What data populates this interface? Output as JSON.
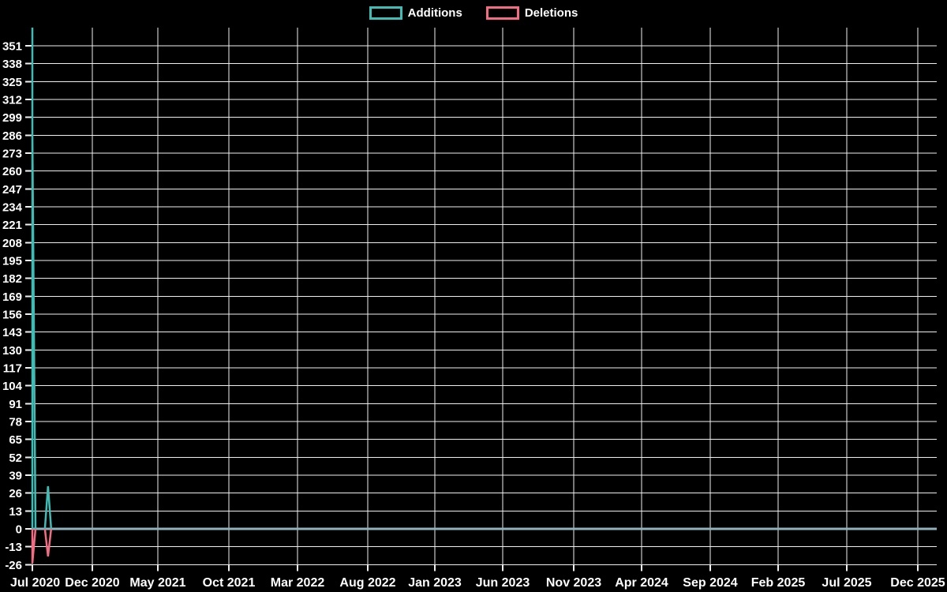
{
  "chart": {
    "background_color": "#000000",
    "text_color": "#ffffff",
    "grid_color": "#efefef"
  },
  "legend": {
    "position": "top-center",
    "items": [
      {
        "label": "Additions",
        "color": "#3dbdb6"
      },
      {
        "label": "Deletions",
        "color": "#f26d83"
      }
    ]
  },
  "chart_data": {
    "type": "line",
    "title": "",
    "xlabel": "",
    "ylabel": "",
    "x_axis": {
      "unit": "week",
      "tick_labels": [
        "Jul 2020",
        "Dec 2020",
        "May 2021",
        "Oct 2021",
        "Mar 2022",
        "Aug 2022",
        "Jan 2023",
        "Jun 2023",
        "Nov 2023",
        "Apr 2024",
        "Sep 2024",
        "Feb 2025",
        "Jul 2025",
        "Dec 2025"
      ]
    },
    "y_axis": {
      "tick_min": -26,
      "tick_max": 351,
      "tick_step": 13,
      "tick_labels": [
        351,
        338,
        325,
        312,
        299,
        286,
        273,
        260,
        247,
        234,
        221,
        208,
        195,
        182,
        169,
        156,
        143,
        130,
        117,
        104,
        91,
        78,
        65,
        52,
        39,
        26,
        13,
        0,
        "-13",
        "-26"
      ]
    },
    "series": [
      {
        "name": "Additions",
        "color": "#3dbdb6",
        "baseline_value": 0,
        "nonzero_points": [
          {
            "week_index": 0,
            "value": 290,
            "spike_clipped_to_top": true
          },
          {
            "week_index": 5,
            "value": 31
          }
        ],
        "note": "all other weekly values are 0 through Dec 2025"
      },
      {
        "name": "Deletions",
        "color": "#f26d83",
        "baseline_value": 0,
        "nonzero_points": [
          {
            "week_index": 0,
            "value": -25
          },
          {
            "week_index": 5,
            "value": -20
          }
        ],
        "note": "all other weekly values are 0 through Dec 2025"
      }
    ],
    "zero_line_color": "#8fb2bc",
    "grid": true,
    "legend_position": "top-center"
  }
}
